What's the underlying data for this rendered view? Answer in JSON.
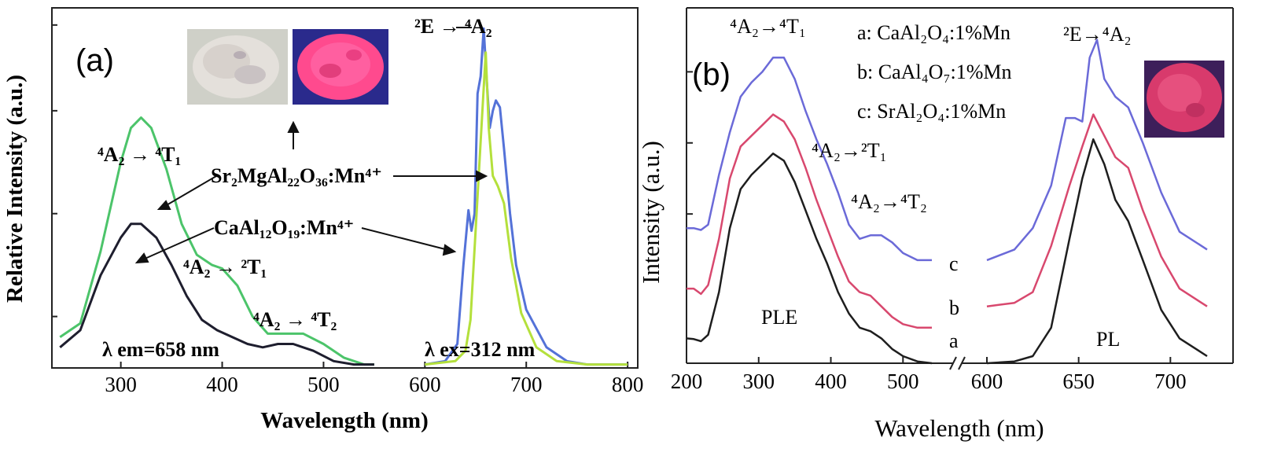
{
  "chart_data": [
    {
      "panel": "(a)",
      "type": "line",
      "xlabel": "Wavelength (nm)",
      "ylabel": "Relative Intensity (a.u.)",
      "xlim": [
        232,
        810
      ],
      "ylim": [
        0,
        1.05
      ],
      "xticks": [
        300,
        400,
        500,
        600,
        700,
        800
      ],
      "colors": {
        "green": "#4cc46a",
        "black": "#1e1e2e",
        "blue": "#5472d8",
        "yellow": "#b4e03c"
      },
      "series": [
        {
          "name": "Sr2MgAl22O36:Mn4+ excitation",
          "color_key": "green",
          "points": [
            [
              240,
              0.09
            ],
            [
              260,
              0.13
            ],
            [
              280,
              0.34
            ],
            [
              300,
              0.6
            ],
            [
              310,
              0.7
            ],
            [
              320,
              0.73
            ],
            [
              330,
              0.7
            ],
            [
              345,
              0.58
            ],
            [
              360,
              0.42
            ],
            [
              375,
              0.33
            ],
            [
              390,
              0.3
            ],
            [
              400,
              0.29
            ],
            [
              415,
              0.24
            ],
            [
              430,
              0.15
            ],
            [
              445,
              0.1
            ],
            [
              460,
              0.1
            ],
            [
              480,
              0.1
            ],
            [
              500,
              0.07
            ],
            [
              520,
              0.03
            ],
            [
              540,
              0.01
            ],
            [
              550,
              0.01
            ]
          ]
        },
        {
          "name": "CaAl12O19:Mn4+ excitation",
          "color_key": "black",
          "points": [
            [
              240,
              0.06
            ],
            [
              260,
              0.11
            ],
            [
              280,
              0.27
            ],
            [
              300,
              0.38
            ],
            [
              310,
              0.42
            ],
            [
              320,
              0.42
            ],
            [
              335,
              0.38
            ],
            [
              350,
              0.3
            ],
            [
              365,
              0.21
            ],
            [
              380,
              0.14
            ],
            [
              395,
              0.11
            ],
            [
              410,
              0.09
            ],
            [
              425,
              0.07
            ],
            [
              440,
              0.06
            ],
            [
              455,
              0.07
            ],
            [
              470,
              0.07
            ],
            [
              490,
              0.05
            ],
            [
              510,
              0.02
            ],
            [
              530,
              0.01
            ],
            [
              550,
              0.01
            ]
          ]
        },
        {
          "name": "Sr2MgAl22O36:Mn4+ emission",
          "color_key": "blue",
          "points": [
            [
              600,
              0.01
            ],
            [
              620,
              0.02
            ],
            [
              632,
              0.07
            ],
            [
              638,
              0.3
            ],
            [
              643,
              0.46
            ],
            [
              646,
              0.4
            ],
            [
              649,
              0.45
            ],
            [
              652,
              0.8
            ],
            [
              655,
              0.85
            ],
            [
              658,
              0.99
            ],
            [
              661,
              0.84
            ],
            [
              664,
              0.7
            ],
            [
              667,
              0.75
            ],
            [
              670,
              0.78
            ],
            [
              674,
              0.76
            ],
            [
              678,
              0.64
            ],
            [
              684,
              0.45
            ],
            [
              690,
              0.3
            ],
            [
              700,
              0.17
            ],
            [
              720,
              0.06
            ],
            [
              740,
              0.02
            ],
            [
              760,
              0.01
            ],
            [
              800,
              0.01
            ]
          ]
        },
        {
          "name": "CaAl12O19:Mn4+ emission",
          "color_key": "yellow",
          "points": [
            [
              600,
              0.01
            ],
            [
              630,
              0.02
            ],
            [
              640,
              0.05
            ],
            [
              645,
              0.14
            ],
            [
              650,
              0.4
            ],
            [
              655,
              0.66
            ],
            [
              660,
              0.92
            ],
            [
              663,
              0.7
            ],
            [
              667,
              0.56
            ],
            [
              672,
              0.53
            ],
            [
              678,
              0.48
            ],
            [
              685,
              0.32
            ],
            [
              695,
              0.16
            ],
            [
              710,
              0.06
            ],
            [
              730,
              0.02
            ],
            [
              760,
              0.01
            ],
            [
              800,
              0.01
            ]
          ]
        }
      ],
      "annotations": {
        "e_label": "²E → ⁴A₂",
        "t1_label": "⁴A₂ → ⁴T₁",
        "t2a_label": "⁴A₂ → ²T₁",
        "t2_label": "⁴A₂ → ⁴T₂",
        "sr_label": "Sr₂MgAl₂₂O₃₆:Mn⁴⁺",
        "ca_label": "CaAl₁₂O₁₉:Mn⁴⁺",
        "lambda_em": "λ em=658 nm",
        "lambda_ex": "λ ex=312 nm"
      },
      "images": [
        "daylight powder photo",
        "UV-excited red emission photo"
      ]
    },
    {
      "panel": "(b)",
      "type": "line",
      "xlabel": "Wavelength (nm)",
      "ylabel": "Intensity (a.u.)",
      "xlim": [
        200,
        730
      ],
      "ylim": [
        0,
        1.0
      ],
      "xticks": [
        200,
        300,
        400,
        500,
        600,
        650,
        700
      ],
      "axis_break": "//",
      "colors": {
        "a": "#1e1e1e",
        "b": "#d8486e",
        "c": "#6b6ad8"
      },
      "series": [
        {
          "name": "a: CaAl2O4:1%Mn",
          "color_key": "a",
          "ple": [
            [
              200,
              0.07
            ],
            [
              210,
              0.068
            ],
            [
              220,
              0.062
            ],
            [
              230,
              0.08
            ],
            [
              245,
              0.2
            ],
            [
              260,
              0.38
            ],
            [
              275,
              0.49
            ],
            [
              290,
              0.53
            ],
            [
              305,
              0.56
            ],
            [
              320,
              0.59
            ],
            [
              335,
              0.57
            ],
            [
              350,
              0.51
            ],
            [
              365,
              0.43
            ],
            [
              380,
              0.35
            ],
            [
              395,
              0.28
            ],
            [
              410,
              0.2
            ],
            [
              425,
              0.14
            ],
            [
              440,
              0.1
            ],
            [
              455,
              0.09
            ],
            [
              470,
              0.07
            ],
            [
              485,
              0.04
            ],
            [
              500,
              0.02
            ],
            [
              520,
              0.005
            ],
            [
              540,
              0.0
            ]
          ],
          "pl": [
            [
              600,
              0.0
            ],
            [
              615,
              0.005
            ],
            [
              625,
              0.02
            ],
            [
              635,
              0.1
            ],
            [
              645,
              0.35
            ],
            [
              652,
              0.52
            ],
            [
              658,
              0.63
            ],
            [
              664,
              0.56
            ],
            [
              670,
              0.46
            ],
            [
              677,
              0.4
            ],
            [
              685,
              0.29
            ],
            [
              695,
              0.15
            ],
            [
              705,
              0.07
            ],
            [
              720,
              0.02
            ]
          ]
        },
        {
          "name": "b: CaAl4O7:1%Mn",
          "color_key": "b",
          "ple": [
            [
              200,
              0.21
            ],
            [
              210,
              0.21
            ],
            [
              220,
              0.195
            ],
            [
              230,
              0.22
            ],
            [
              245,
              0.35
            ],
            [
              260,
              0.52
            ],
            [
              275,
              0.61
            ],
            [
              290,
              0.64
            ],
            [
              305,
              0.67
            ],
            [
              320,
              0.7
            ],
            [
              335,
              0.68
            ],
            [
              350,
              0.63
            ],
            [
              365,
              0.55
            ],
            [
              380,
              0.46
            ],
            [
              395,
              0.38
            ],
            [
              410,
              0.3
            ],
            [
              425,
              0.23
            ],
            [
              440,
              0.2
            ],
            [
              455,
              0.19
            ],
            [
              470,
              0.16
            ],
            [
              485,
              0.13
            ],
            [
              500,
              0.11
            ],
            [
              520,
              0.1
            ],
            [
              540,
              0.1
            ]
          ],
          "pl": [
            [
              600,
              0.16
            ],
            [
              615,
              0.17
            ],
            [
              625,
              0.2
            ],
            [
              635,
              0.33
            ],
            [
              645,
              0.5
            ],
            [
              652,
              0.61
            ],
            [
              658,
              0.7
            ],
            [
              664,
              0.64
            ],
            [
              670,
              0.58
            ],
            [
              677,
              0.55
            ],
            [
              685,
              0.43
            ],
            [
              695,
              0.3
            ],
            [
              705,
              0.21
            ],
            [
              720,
              0.16
            ]
          ]
        },
        {
          "name": "c: SrAl2O4:1%Mn",
          "color_key": "c",
          "ple": [
            [
              200,
              0.38
            ],
            [
              210,
              0.38
            ],
            [
              220,
              0.375
            ],
            [
              230,
              0.39
            ],
            [
              245,
              0.53
            ],
            [
              260,
              0.65
            ],
            [
              275,
              0.75
            ],
            [
              290,
              0.79
            ],
            [
              305,
              0.82
            ],
            [
              320,
              0.86
            ],
            [
              335,
              0.86
            ],
            [
              350,
              0.8
            ],
            [
              365,
              0.71
            ],
            [
              380,
              0.63
            ],
            [
              395,
              0.56
            ],
            [
              410,
              0.48
            ],
            [
              425,
              0.39
            ],
            [
              440,
              0.35
            ],
            [
              455,
              0.36
            ],
            [
              470,
              0.36
            ],
            [
              485,
              0.34
            ],
            [
              500,
              0.31
            ],
            [
              520,
              0.29
            ],
            [
              540,
              0.29
            ]
          ],
          "pl": [
            [
              600,
              0.29
            ],
            [
              615,
              0.32
            ],
            [
              625,
              0.38
            ],
            [
              635,
              0.5
            ],
            [
              643,
              0.69
            ],
            [
              648,
              0.69
            ],
            [
              652,
              0.68
            ],
            [
              656,
              0.86
            ],
            [
              660,
              0.91
            ],
            [
              664,
              0.8
            ],
            [
              670,
              0.75
            ],
            [
              677,
              0.72
            ],
            [
              685,
              0.62
            ],
            [
              695,
              0.48
            ],
            [
              705,
              0.37
            ],
            [
              720,
              0.32
            ]
          ]
        }
      ],
      "annotations": {
        "t1_label": "⁴A₂→⁴T₁",
        "t2a_label": "⁴A₂→²T₁",
        "t2_label": "⁴A₂→⁴T₂",
        "e_label": "²E→⁴A₂",
        "legend_a": "a: CaAl₂O₄:1%Mn",
        "legend_b": "b: CaAl₄O₇:1%Mn",
        "legend_c": "c: SrAl₂O₄:1%Mn",
        "ple_label": "PLE",
        "pl_label": "PL",
        "letter_a": "a",
        "letter_b": "b",
        "letter_c": "c"
      },
      "images": [
        "UV-excited red emission photo"
      ]
    }
  ]
}
